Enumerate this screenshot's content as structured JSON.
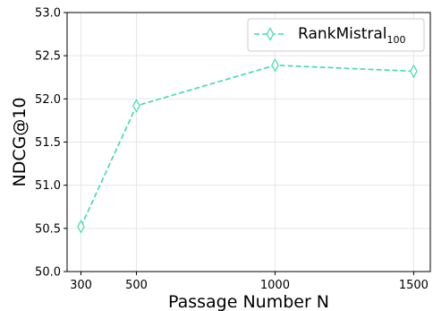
{
  "chart_data": {
    "type": "line",
    "x": [
      300,
      500,
      1000,
      1500
    ],
    "series": [
      {
        "name": "RankMistral",
        "name_subscript": "100",
        "values": [
          50.52,
          51.92,
          52.39,
          52.32
        ],
        "color": "#40D9B0",
        "line_style": "dashed",
        "marker": "thin-diamond"
      }
    ],
    "xlabel": "Passage Number N",
    "ylabel": "NDCG@10",
    "xticks": [
      "300",
      "500",
      "1000",
      "1500"
    ],
    "yticks": [
      "50.0",
      "50.5",
      "51.0",
      "51.5",
      "52.0",
      "52.5",
      "53.0"
    ],
    "xlim": [
      250,
      1560
    ],
    "ylim": [
      50.0,
      53.0
    ],
    "grid": true,
    "legend_position": "top-right"
  }
}
